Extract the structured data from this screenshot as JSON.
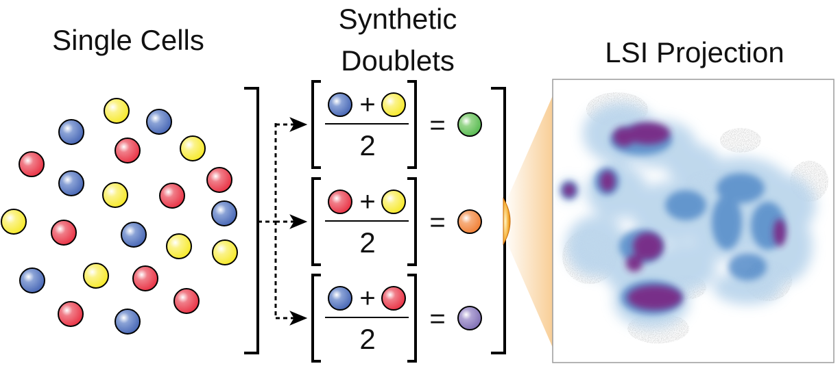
{
  "titles": {
    "single_cells": "Single Cells",
    "synthetic_line1": "Synthetic",
    "synthetic_line2": "Doublets",
    "lsi_projection": "LSI Projection"
  },
  "colors": {
    "red": "#e8293c",
    "blue": "#3f5fb0",
    "yellow": "#f6e81c",
    "green": "#4fb64a",
    "orange": "#f07a2c",
    "purple": "#7a69b0",
    "density_dark": "#7a2a86",
    "density_mid": "#3f7ec2",
    "density_light": "#bcd6ec",
    "points_grey": "#c8c8c8",
    "spotlight": "#f3a640"
  },
  "equations": [
    {
      "left": "blue",
      "op": "+",
      "right": "yellow",
      "denominator": "2",
      "equals": "=",
      "result": "green"
    },
    {
      "left": "red",
      "op": "+",
      "right": "yellow",
      "denominator": "2",
      "equals": "=",
      "result": "orange"
    },
    {
      "left": "blue",
      "op": "+",
      "right": "red",
      "denominator": "2",
      "equals": "=",
      "result": "purple"
    }
  ],
  "single_cells": [
    "yellow",
    "blue",
    "blue",
    "red",
    "yellow",
    "red",
    "blue",
    "red",
    "yellow",
    "red",
    "blue",
    "yellow",
    "red",
    "blue",
    "yellow",
    "yellow",
    "blue",
    "yellow",
    "red",
    "red",
    "red",
    "blue"
  ]
}
